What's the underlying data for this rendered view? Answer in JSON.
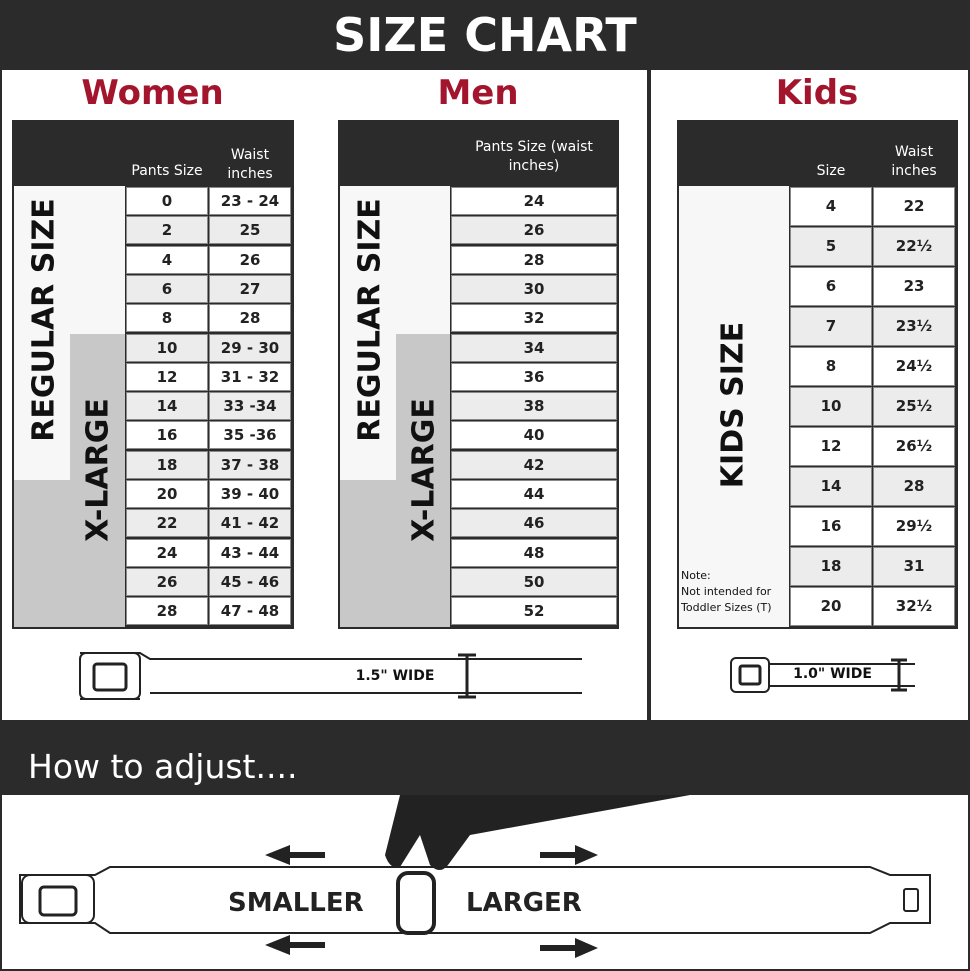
{
  "title": "SIZE CHART",
  "accent_color": "#a3152d",
  "women": {
    "title": "Women",
    "col1": "Pants Size",
    "col2": "Waist inches",
    "regular_label": "REGULAR SIZE",
    "xlarge_label": "X-LARGE",
    "rows": [
      [
        "0",
        "23 - 24"
      ],
      [
        "2",
        "25"
      ],
      [
        "4",
        "26"
      ],
      [
        "6",
        "27"
      ],
      [
        "8",
        "28"
      ],
      [
        "10",
        "29 - 30"
      ],
      [
        "12",
        "31 - 32"
      ],
      [
        "14",
        "33 -34"
      ],
      [
        "16",
        "35 -36"
      ],
      [
        "18",
        "37 - 38"
      ],
      [
        "20",
        "39 - 40"
      ],
      [
        "22",
        "41 - 42"
      ],
      [
        "24",
        "43 - 44"
      ],
      [
        "26",
        "45 - 46"
      ],
      [
        "28",
        "47 - 48"
      ]
    ]
  },
  "men": {
    "title": "Men",
    "col1": "Pants Size (waist inches)",
    "regular_label": "REGULAR SIZE",
    "xlarge_label": "X-LARGE",
    "rows": [
      "24",
      "26",
      "28",
      "30",
      "32",
      "34",
      "36",
      "38",
      "40",
      "42",
      "44",
      "46",
      "48",
      "50",
      "52"
    ]
  },
  "kids": {
    "title": "Kids",
    "col1": "Size",
    "col2": "Waist inches",
    "label": "KIDS SIZE",
    "note_title": "Note:",
    "note": "Not intended for Toddler Sizes (T)",
    "rows": [
      [
        "4",
        "22"
      ],
      [
        "5",
        "22½"
      ],
      [
        "6",
        "23"
      ],
      [
        "7",
        "23½"
      ],
      [
        "8",
        "24½"
      ],
      [
        "10",
        "25½"
      ],
      [
        "12",
        "26½"
      ],
      [
        "14",
        "28"
      ],
      [
        "16",
        "29½"
      ],
      [
        "18",
        "31"
      ],
      [
        "20",
        "32½"
      ]
    ]
  },
  "belt_adult_width": "1.5\" WIDE",
  "belt_kids_width": "1.0\" WIDE",
  "adjust": {
    "title": "How to adjust....",
    "smaller": "SMALLER",
    "larger": "LARGER"
  }
}
